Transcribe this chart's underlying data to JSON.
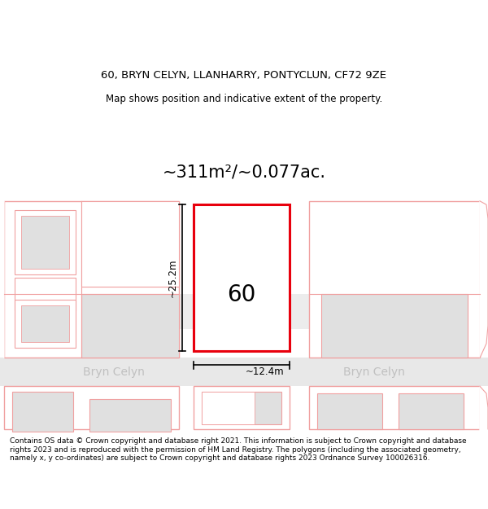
{
  "title_line1": "60, BRYN CELYN, LLANHARRY, PONTYCLUN, CF72 9ZE",
  "title_line2": "Map shows position and indicative extent of the property.",
  "area_text": "~311m²/~0.077ac.",
  "width_label": "~12.4m",
  "height_label": "~25.2m",
  "number_label": "60",
  "street_label_left": "Bryn Celyn",
  "street_label_right": "Bryn Celyn",
  "footer_text": "Contains OS data © Crown copyright and database right 2021. This information is subject to Crown copyright and database rights 2023 and is reproduced with the permission of HM Land Registry. The polygons (including the associated geometry, namely x, y co-ordinates) are subject to Crown copyright and database rights 2023 Ordnance Survey 100026316.",
  "bg_color": "#ffffff",
  "highlight_color": "#e8000d",
  "neighbor_edge": "#f0a0a0",
  "neighbor_fill": "#ffffff",
  "gray_fill": "#e0e0e0",
  "road_gray": "#e8e8e8",
  "street_color": "#c0c0c0",
  "title_fontsize": 9.5,
  "subtitle_fontsize": 8.5,
  "area_fontsize": 15,
  "dim_fontsize": 8.5,
  "number_fontsize": 20,
  "street_fontsize": 10,
  "footer_fontsize": 6.5
}
